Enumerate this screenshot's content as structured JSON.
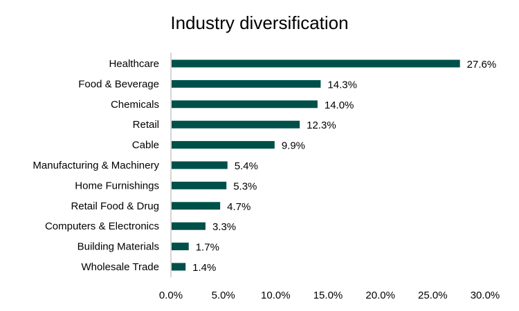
{
  "chart_data": {
    "type": "bar",
    "orientation": "horizontal",
    "title": "Industry diversification",
    "xlabel": "",
    "ylabel": "",
    "categories": [
      "Healthcare",
      "Food & Beverage",
      "Chemicals",
      "Retail",
      "Cable",
      "Manufacturing & Machinery",
      "Home Furnishings",
      "Retail Food & Drug",
      "Computers & Electronics",
      "Building Materials",
      "Wholesale Trade"
    ],
    "values": [
      27.6,
      14.3,
      14.0,
      12.3,
      9.9,
      5.4,
      5.3,
      4.7,
      3.3,
      1.7,
      1.4
    ],
    "data_labels": [
      "27.6%",
      "14.3%",
      "14.0%",
      "12.3%",
      "9.9%",
      "5.4%",
      "5.3%",
      "4.7%",
      "3.3%",
      "1.7%",
      "1.4%"
    ],
    "xlim": [
      0,
      30
    ],
    "xticks": [
      0,
      5,
      10,
      15,
      20,
      25,
      30
    ],
    "xtick_labels": [
      "0.0%",
      "5.0%",
      "10.0%",
      "15.0%",
      "20.0%",
      "25.0%",
      "30.0%"
    ],
    "grid": false,
    "legend": "none",
    "bar_color": "#00504a",
    "axis_color": "#c8c8c8"
  }
}
